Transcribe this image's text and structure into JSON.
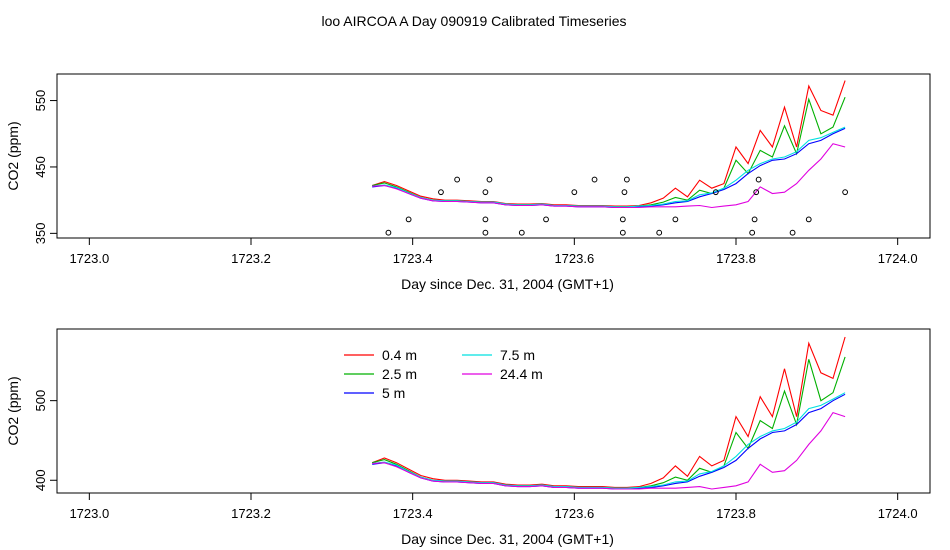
{
  "figure": {
    "title": "loo AIRCOA A  Day 090919  Calibrated Timeseries",
    "background": "#ffffff"
  },
  "colors": {
    "0.4 m": "#ff0000",
    "2.5 m": "#00b000",
    "5 m": "#0000ff",
    "7.5 m": "#00e0e0",
    "24.4 m": "#e000e0",
    "points": "#000000"
  },
  "chart_data": [
    {
      "type": "line",
      "xlabel": "Day since Dec. 31, 2004 (GMT+1)",
      "ylabel": "CO2 (ppm)",
      "xlim": [
        1722.96,
        1724.04
      ],
      "ylim": [
        343,
        590
      ],
      "xticks": [
        1723.0,
        1723.2,
        1723.4,
        1723.6,
        1723.8,
        1724.0
      ],
      "xtick_labels": [
        "1723.0",
        "1723.2",
        "1723.4",
        "1723.6",
        "1723.8",
        "1724.0"
      ],
      "yticks": [
        350,
        450,
        550
      ],
      "ytick_labels": [
        "350",
        "450",
        "550"
      ],
      "x": [
        1723.35,
        1723.365,
        1723.38,
        1723.395,
        1723.41,
        1723.425,
        1723.44,
        1723.455,
        1723.47,
        1723.485,
        1723.5,
        1723.515,
        1723.53,
        1723.545,
        1723.56,
        1723.575,
        1723.59,
        1723.605,
        1723.62,
        1723.635,
        1723.65,
        1723.665,
        1723.68,
        1723.695,
        1723.71,
        1723.725,
        1723.74,
        1723.755,
        1723.77,
        1723.785,
        1723.8,
        1723.815,
        1723.83,
        1723.845,
        1723.86,
        1723.875,
        1723.89,
        1723.905,
        1723.92,
        1723.935
      ],
      "series": [
        {
          "name": "0.4 m",
          "values": [
            422,
            428,
            422,
            414,
            406,
            402,
            400,
            400,
            399,
            398,
            398,
            395,
            394,
            394,
            395,
            393,
            393,
            392,
            392,
            392,
            391,
            391,
            392,
            396,
            403,
            418,
            405,
            430,
            418,
            425,
            480,
            455,
            505,
            480,
            540,
            480,
            572,
            535,
            528,
            580
          ]
        },
        {
          "name": "2.5 m",
          "values": [
            422,
            426,
            420,
            412,
            404,
            400,
            399,
            399,
            398,
            397,
            397,
            394,
            393,
            393,
            394,
            392,
            392,
            391,
            391,
            391,
            390,
            390,
            391,
            393,
            397,
            404,
            400,
            415,
            410,
            418,
            460,
            440,
            475,
            465,
            512,
            470,
            552,
            500,
            510,
            555
          ]
        },
        {
          "name": "5 m",
          "values": [
            420,
            422,
            418,
            410,
            403,
            399,
            398,
            398,
            397,
            396,
            396,
            393,
            392,
            392,
            393,
            391,
            391,
            390,
            390,
            390,
            389,
            389,
            390,
            391,
            393,
            396,
            398,
            405,
            410,
            416,
            425,
            440,
            452,
            460,
            462,
            470,
            485,
            490,
            500,
            508
          ]
        },
        {
          "name": "7.5 m",
          "values": [
            421,
            423,
            419,
            411,
            404,
            400,
            399,
            399,
            398,
            397,
            397,
            394,
            393,
            393,
            394,
            392,
            392,
            391,
            391,
            391,
            390,
            390,
            391,
            392,
            394,
            398,
            399,
            408,
            411,
            418,
            430,
            445,
            455,
            462,
            465,
            473,
            490,
            494,
            502,
            510
          ]
        },
        {
          "name": "24.4 m",
          "values": [
            421,
            422,
            417,
            410,
            403,
            399,
            398,
            398,
            397,
            396,
            396,
            393,
            392,
            392,
            393,
            391,
            391,
            390,
            390,
            390,
            389,
            389,
            389,
            390,
            390,
            390,
            391,
            392,
            389,
            391,
            393,
            398,
            420,
            410,
            412,
            425,
            445,
            462,
            485,
            480
          ]
        }
      ],
      "points": {
        "x": [
          1723.37,
          1723.395,
          1723.435,
          1723.455,
          1723.49,
          1723.49,
          1723.49,
          1723.495,
          1723.535,
          1723.565,
          1723.6,
          1723.625,
          1723.66,
          1723.66,
          1723.662,
          1723.665,
          1723.705,
          1723.725,
          1723.775,
          1723.82,
          1723.823,
          1723.825,
          1723.828,
          1723.87,
          1723.89,
          1723.935
        ],
        "y": [
          351,
          371,
          412,
          431,
          351,
          371,
          412,
          431,
          351,
          371,
          412,
          431,
          351,
          371,
          412,
          431,
          351,
          371,
          412,
          351,
          371,
          412,
          431,
          351,
          371,
          412
        ]
      }
    },
    {
      "type": "line",
      "xlabel": "Day since Dec. 31, 2004 (GMT+1)",
      "ylabel": "CO2 (ppm)",
      "xlim": [
        1722.96,
        1724.04
      ],
      "ylim": [
        384,
        590
      ],
      "xticks": [
        1723.0,
        1723.2,
        1723.4,
        1723.6,
        1723.8,
        1724.0
      ],
      "xtick_labels": [
        "1723.0",
        "1723.2",
        "1723.4",
        "1723.6",
        "1723.8",
        "1724.0"
      ],
      "yticks": [
        400,
        500
      ],
      "ytick_labels": [
        "400",
        "500"
      ],
      "legend": [
        "0.4 m",
        "2.5 m",
        "5 m",
        "7.5 m",
        "24.4 m"
      ],
      "legend_placement": "top-center",
      "x": [
        1723.35,
        1723.365,
        1723.38,
        1723.395,
        1723.41,
        1723.425,
        1723.44,
        1723.455,
        1723.47,
        1723.485,
        1723.5,
        1723.515,
        1723.53,
        1723.545,
        1723.56,
        1723.575,
        1723.59,
        1723.605,
        1723.62,
        1723.635,
        1723.65,
        1723.665,
        1723.68,
        1723.695,
        1723.71,
        1723.725,
        1723.74,
        1723.755,
        1723.77,
        1723.785,
        1723.8,
        1723.815,
        1723.83,
        1723.845,
        1723.86,
        1723.875,
        1723.89,
        1723.905,
        1723.92,
        1723.935
      ],
      "series": [
        {
          "name": "0.4 m",
          "values": [
            422,
            428,
            422,
            414,
            406,
            402,
            400,
            400,
            399,
            398,
            398,
            395,
            394,
            394,
            395,
            393,
            393,
            392,
            392,
            392,
            391,
            391,
            392,
            396,
            403,
            418,
            405,
            430,
            418,
            425,
            480,
            455,
            505,
            480,
            540,
            480,
            572,
            535,
            528,
            580
          ]
        },
        {
          "name": "2.5 m",
          "values": [
            422,
            426,
            420,
            412,
            404,
            400,
            399,
            399,
            398,
            397,
            397,
            394,
            393,
            393,
            394,
            392,
            392,
            391,
            391,
            391,
            390,
            390,
            391,
            393,
            397,
            404,
            400,
            415,
            410,
            418,
            460,
            440,
            475,
            465,
            512,
            470,
            552,
            500,
            510,
            555
          ]
        },
        {
          "name": "5 m",
          "values": [
            420,
            422,
            418,
            410,
            403,
            399,
            398,
            398,
            397,
            396,
            396,
            393,
            392,
            392,
            393,
            391,
            391,
            390,
            390,
            390,
            389,
            389,
            390,
            391,
            393,
            396,
            398,
            405,
            410,
            416,
            425,
            440,
            452,
            460,
            462,
            470,
            485,
            490,
            500,
            508
          ]
        },
        {
          "name": "7.5 m",
          "values": [
            421,
            423,
            419,
            411,
            404,
            400,
            399,
            399,
            398,
            397,
            397,
            394,
            393,
            393,
            394,
            392,
            392,
            391,
            391,
            391,
            390,
            390,
            391,
            392,
            394,
            398,
            399,
            408,
            411,
            418,
            430,
            445,
            455,
            462,
            465,
            473,
            490,
            494,
            502,
            510
          ]
        },
        {
          "name": "24.4 m",
          "values": [
            421,
            422,
            417,
            410,
            403,
            399,
            398,
            398,
            397,
            396,
            396,
            393,
            392,
            392,
            393,
            391,
            391,
            390,
            390,
            390,
            389,
            389,
            389,
            390,
            390,
            390,
            391,
            392,
            389,
            391,
            393,
            398,
            420,
            410,
            412,
            425,
            445,
            462,
            485,
            480
          ]
        }
      ]
    }
  ]
}
